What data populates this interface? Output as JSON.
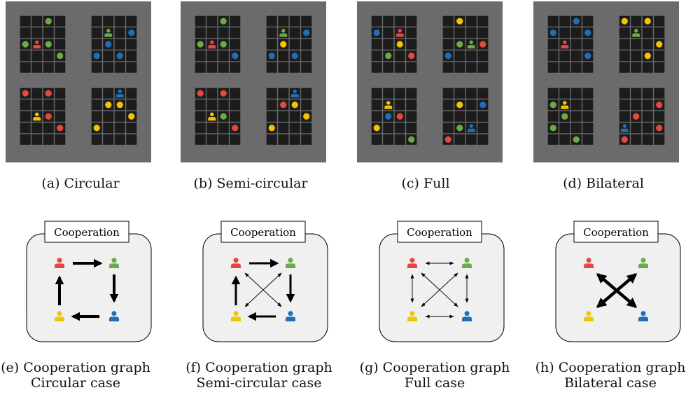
{
  "colors": {
    "red": "#e8473f",
    "green": "#6aab45",
    "blue": "#1f6fb8",
    "yellow": "#f5c400",
    "panel_bg": "#6b6b6b",
    "cell": "#1c1c1c",
    "graph_bg": "#f0f0f0"
  },
  "grids": [
    {
      "caption": "(a) Circular",
      "rooms": [
        {
          "agent": {
            "color": "red",
            "r": 2,
            "c": 1
          },
          "dots": [
            {
              "color": "green",
              "r": 0,
              "c": 2
            },
            {
              "color": "green",
              "r": 2,
              "c": 0
            },
            {
              "color": "green",
              "r": 2,
              "c": 2
            },
            {
              "color": "green",
              "r": 3,
              "c": 3
            }
          ]
        },
        {
          "agent": {
            "color": "green",
            "r": 1,
            "c": 1
          },
          "dots": [
            {
              "color": "blue",
              "r": 1,
              "c": 3
            },
            {
              "color": "blue",
              "r": 2,
              "c": 1
            },
            {
              "color": "blue",
              "r": 3,
              "c": 0
            },
            {
              "color": "blue",
              "r": 3,
              "c": 2
            }
          ]
        },
        {
          "agent": {
            "color": "yellow",
            "r": 2,
            "c": 1
          },
          "dots": [
            {
              "color": "red",
              "r": 0,
              "c": 0
            },
            {
              "color": "red",
              "r": 0,
              "c": 2
            },
            {
              "color": "red",
              "r": 2,
              "c": 2
            },
            {
              "color": "red",
              "r": 3,
              "c": 3
            }
          ]
        },
        {
          "agent": {
            "color": "blue",
            "r": 0,
            "c": 2
          },
          "dots": [
            {
              "color": "yellow",
              "r": 1,
              "c": 1
            },
            {
              "color": "yellow",
              "r": 1,
              "c": 2
            },
            {
              "color": "yellow",
              "r": 2,
              "c": 3
            },
            {
              "color": "yellow",
              "r": 3,
              "c": 0
            }
          ]
        }
      ]
    },
    {
      "caption": "(b) Semi-circular",
      "rooms": [
        {
          "agent": {
            "color": "red",
            "r": 2,
            "c": 1
          },
          "dots": [
            {
              "color": "green",
              "r": 0,
              "c": 2
            },
            {
              "color": "green",
              "r": 2,
              "c": 0
            },
            {
              "color": "green",
              "r": 2,
              "c": 2
            },
            {
              "color": "blue",
              "r": 3,
              "c": 3
            }
          ]
        },
        {
          "agent": {
            "color": "green",
            "r": 1,
            "c": 1
          },
          "dots": [
            {
              "color": "blue",
              "r": 1,
              "c": 3
            },
            {
              "color": "yellow",
              "r": 2,
              "c": 1
            },
            {
              "color": "blue",
              "r": 3,
              "c": 0
            },
            {
              "color": "blue",
              "r": 3,
              "c": 2
            }
          ]
        },
        {
          "agent": {
            "color": "yellow",
            "r": 2,
            "c": 1
          },
          "dots": [
            {
              "color": "red",
              "r": 0,
              "c": 0
            },
            {
              "color": "red",
              "r": 0,
              "c": 2
            },
            {
              "color": "green",
              "r": 2,
              "c": 2
            },
            {
              "color": "red",
              "r": 3,
              "c": 3
            }
          ]
        },
        {
          "agent": {
            "color": "blue",
            "r": 0,
            "c": 2
          },
          "dots": [
            {
              "color": "red",
              "r": 1,
              "c": 1
            },
            {
              "color": "yellow",
              "r": 1,
              "c": 2
            },
            {
              "color": "yellow",
              "r": 2,
              "c": 3
            },
            {
              "color": "yellow",
              "r": 3,
              "c": 0
            }
          ]
        }
      ]
    },
    {
      "caption": "(c) Full",
      "rooms": [
        {
          "agent": {
            "color": "red",
            "r": 1,
            "c": 2
          },
          "dots": [
            {
              "color": "blue",
              "r": 1,
              "c": 0
            },
            {
              "color": "yellow",
              "r": 2,
              "c": 2
            },
            {
              "color": "green",
              "r": 3,
              "c": 1
            },
            {
              "color": "red",
              "r": 3,
              "c": 3
            }
          ]
        },
        {
          "agent": {
            "color": "green",
            "r": 2,
            "c": 2
          },
          "dots": [
            {
              "color": "yellow",
              "r": 0,
              "c": 1
            },
            {
              "color": "green",
              "r": 2,
              "c": 1
            },
            {
              "color": "red",
              "r": 2,
              "c": 3
            },
            {
              "color": "blue",
              "r": 3,
              "c": 0
            }
          ]
        },
        {
          "agent": {
            "color": "yellow",
            "r": 1,
            "c": 1
          },
          "dots": [
            {
              "color": "blue",
              "r": 2,
              "c": 1
            },
            {
              "color": "red",
              "r": 2,
              "c": 2
            },
            {
              "color": "yellow",
              "r": 3,
              "c": 0
            },
            {
              "color": "green",
              "r": 4,
              "c": 3
            }
          ]
        },
        {
          "agent": {
            "color": "blue",
            "r": 3,
            "c": 2
          },
          "dots": [
            {
              "color": "yellow",
              "r": 1,
              "c": 1
            },
            {
              "color": "blue",
              "r": 1,
              "c": 3
            },
            {
              "color": "green",
              "r": 3,
              "c": 1
            },
            {
              "color": "red",
              "r": 4,
              "c": 0
            }
          ]
        }
      ]
    },
    {
      "caption": "(d) Bilateral",
      "rooms": [
        {
          "agent": {
            "color": "red",
            "r": 2,
            "c": 1
          },
          "dots": [
            {
              "color": "blue",
              "r": 0,
              "c": 2
            },
            {
              "color": "blue",
              "r": 1,
              "c": 0
            },
            {
              "color": "blue",
              "r": 1,
              "c": 3
            },
            {
              "color": "blue",
              "r": 3,
              "c": 3
            }
          ]
        },
        {
          "agent": {
            "color": "green",
            "r": 1,
            "c": 1
          },
          "dots": [
            {
              "color": "yellow",
              "r": 0,
              "c": 0
            },
            {
              "color": "yellow",
              "r": 0,
              "c": 2
            },
            {
              "color": "yellow",
              "r": 2,
              "c": 3
            },
            {
              "color": "yellow",
              "r": 3,
              "c": 2
            }
          ]
        },
        {
          "agent": {
            "color": "yellow",
            "r": 1,
            "c": 1
          },
          "dots": [
            {
              "color": "green",
              "r": 1,
              "c": 0
            },
            {
              "color": "green",
              "r": 2,
              "c": 1
            },
            {
              "color": "green",
              "r": 3,
              "c": 0
            },
            {
              "color": "green",
              "r": 4,
              "c": 2
            }
          ]
        },
        {
          "agent": {
            "color": "blue",
            "r": 3,
            "c": 0
          },
          "dots": [
            {
              "color": "red",
              "r": 1,
              "c": 3
            },
            {
              "color": "red",
              "r": 2,
              "c": 1
            },
            {
              "color": "red",
              "r": 3,
              "c": 3
            },
            {
              "color": "red",
              "r": 4,
              "c": 0
            }
          ]
        }
      ]
    }
  ],
  "graphs": [
    {
      "label": "Cooperation",
      "caption_line1": "(e) Cooperation graph",
      "caption_line2": "Circular case",
      "type": "circular"
    },
    {
      "label": "Cooperation",
      "caption_line1": "(f) Cooperation graph",
      "caption_line2": "Semi-circular case",
      "type": "semicircular"
    },
    {
      "label": "Cooperation",
      "caption_line1": "(g) Cooperation graph",
      "caption_line2": "Full case",
      "type": "full"
    },
    {
      "label": "Cooperation",
      "caption_line1": "(h) Cooperation graph",
      "caption_line2": "Bilateral case",
      "type": "bilateral"
    }
  ]
}
